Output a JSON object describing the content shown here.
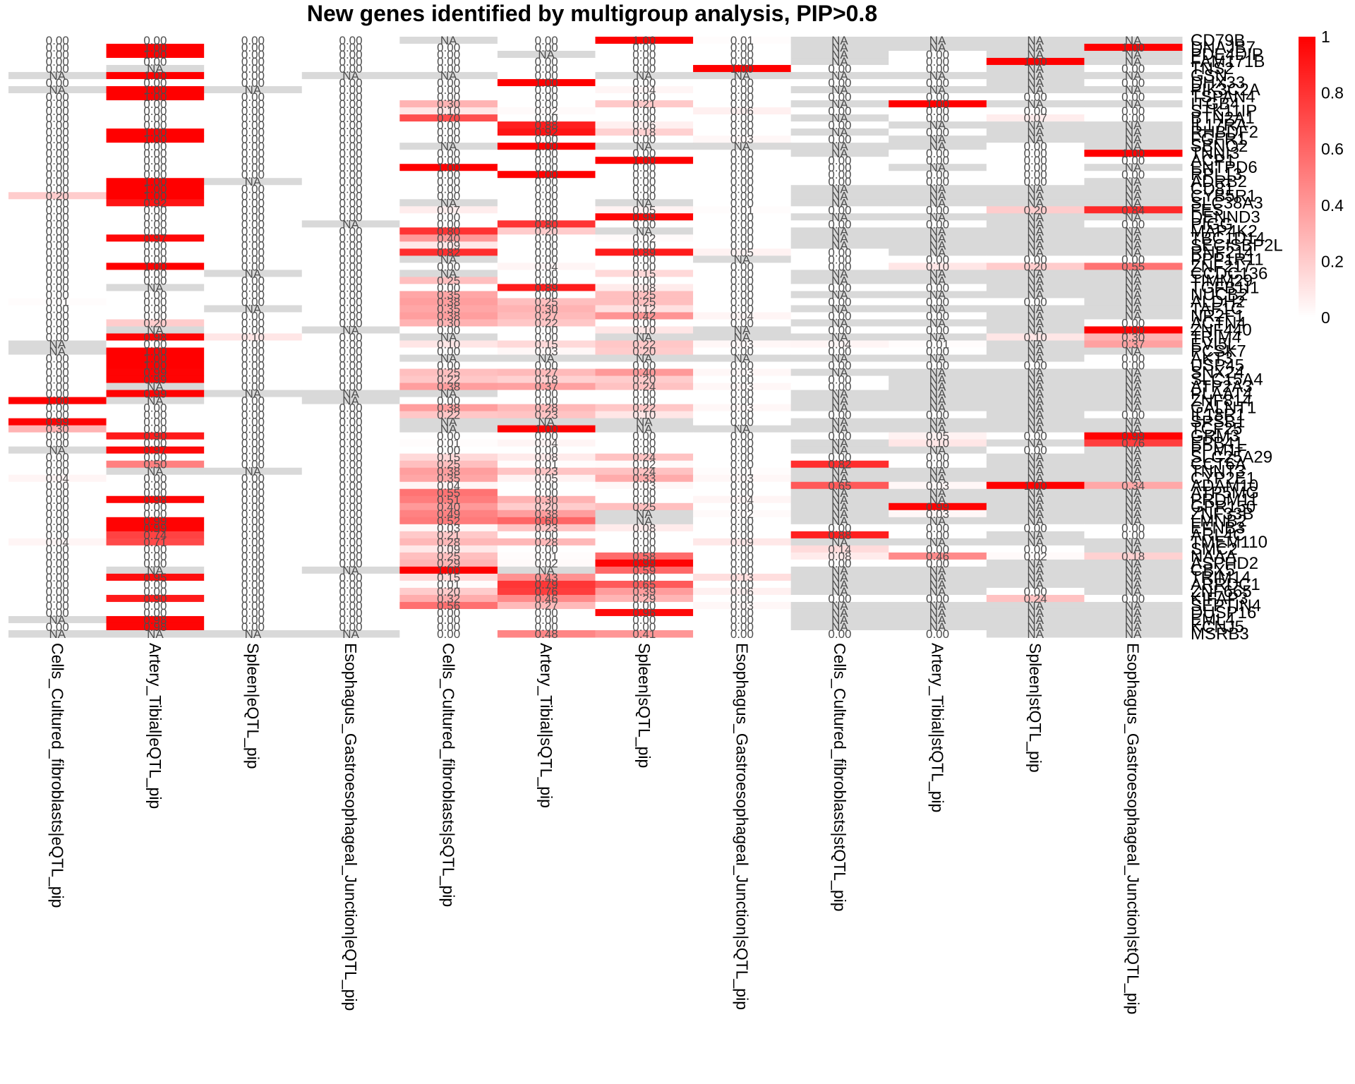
{
  "chart_data": {
    "type": "heatmap",
    "title": "New genes identified by multigroup analysis, PIP>0.8",
    "columns": [
      "Cells_Cultured_fibroblasts|eQTL_pip",
      "Artery_Tibial|eQTL_pip",
      "Spleen|eQTL_pip",
      "Esophagus_Gastroesophageal_Junction|eQTL_pip",
      "Cells_Cultured_fibroblasts|sQTL_pip",
      "Artery_Tibial|sQTL_pip",
      "Spleen|sQTL_pip",
      "Esophagus_Gastroesophageal_Junction|sQTL_pip",
      "Cells_Cultured_fibroblasts|stQTL_pip",
      "Artery_Tibial|stQTL_pip",
      "Spleen|stQTL_pip",
      "Esophagus_Gastroesophageal_Junction|stQTL_pip"
    ],
    "rows": [
      "CD79B",
      "DNAJB7",
      "PDE4DIP",
      "FAM171B",
      "TNS2",
      "GSN",
      "DHX33",
      "PIK3C2A",
      "TSPAN4",
      "ITGB4",
      "STK11IP",
      "BTN2A1",
      "IL17RA",
      "RHBDF2",
      "FGFR1",
      "SBNO2",
      "TNNI3",
      "ACP1",
      "ENTPD6",
      "RPL13",
      "ADRB2",
      "CD81",
      "CYB5R1",
      "SLC38A3",
      "FES",
      "DENND3",
      "PIGG",
      "MAP4K2",
      "TBC1D14",
      "SECISBP2L",
      "RNF214",
      "PPP1R11",
      "ZNF217",
      "CCDC136",
      "TIMM29",
      "TGFB1I1",
      "NUCB2",
      "ALDH2",
      "TAF1C",
      "NR2F1",
      "ACTN4",
      "ZNF440",
      "TRIM4",
      "EVI5L",
      "PCSK7",
      "AKT3",
      "USP45",
      "SNX24",
      "SLC15A4",
      "ATP2A3",
      "PLAAT4",
      "ZNF814",
      "GALNT1",
      "IL18R1",
      "SPSB1",
      "TCF25",
      "GRM3",
      "EPB41",
      "PPM1F",
      "SLC25A29",
      "CCT6A",
      "TNNT3",
      "CYP2E1",
      "ADAM10",
      "ATP5MG",
      "PRDM11",
      "GPR150",
      "ZNF33B",
      "LMNB2",
      "EFNB3",
      "ARL4C",
      "TMEM110",
      "SMC2",
      "NAAA",
      "ASPHD2",
      "CBX5",
      "TRIM14",
      "ARRDC1",
      "ZNF665",
      "KIFAP3",
      "SEPTIN4",
      "DUSP16",
      "EML4",
      "KCNJ5",
      "MSRB3"
    ],
    "values": [
      [
        0.0,
        0.0,
        0.0,
        0.0,
        null,
        0.0,
        1.0,
        0.01,
        null,
        null,
        null,
        null
      ],
      [
        0.0,
        1.0,
        0.0,
        0.0,
        0.0,
        0.0,
        0.0,
        0.0,
        null,
        null,
        null,
        1.0
      ],
      [
        0.0,
        1.0,
        0.0,
        0.0,
        0.0,
        null,
        0.0,
        0.0,
        null,
        0.0,
        null,
        null
      ],
      [
        0.0,
        0.0,
        0.0,
        0.0,
        0.0,
        0.0,
        0.0,
        0.0,
        null,
        0.0,
        1.0,
        null
      ],
      [
        0.0,
        null,
        0.0,
        0.0,
        0.0,
        0.0,
        0.0,
        1.0,
        0.0,
        0.0,
        null,
        0.0
      ],
      [
        null,
        1.0,
        0.0,
        null,
        null,
        0.0,
        null,
        null,
        null,
        null,
        null,
        null
      ],
      [
        0.0,
        0.0,
        0.0,
        0.0,
        0.0,
        1.0,
        0.0,
        0.0,
        0.0,
        0.0,
        null,
        0.0
      ],
      [
        null,
        1.0,
        null,
        0.0,
        0.0,
        0.0,
        0.04,
        0.0,
        null,
        null,
        null,
        null
      ],
      [
        0.0,
        1.0,
        0.0,
        0.0,
        0.0,
        0.0,
        0.0,
        0.0,
        0.0,
        0.0,
        0.0,
        0.0
      ],
      [
        0.0,
        0.0,
        0.0,
        0.0,
        0.3,
        0.0,
        0.21,
        0.0,
        null,
        1.0,
        null,
        null
      ],
      [
        0.0,
        0.0,
        0.0,
        0.0,
        0.1,
        0.02,
        0.0,
        0.06,
        0.0,
        0.0,
        0.0,
        0.0
      ],
      [
        0.0,
        0.0,
        0.0,
        0.0,
        0.7,
        0.0,
        0.0,
        0.0,
        null,
        0.0,
        0.07,
        0.0
      ],
      [
        0.0,
        0.0,
        0.0,
        0.0,
        0.0,
        0.88,
        0.06,
        0.0,
        0.0,
        null,
        null,
        null
      ],
      [
        0.0,
        1.0,
        0.0,
        0.0,
        0.0,
        0.92,
        0.18,
        0.0,
        null,
        0.0,
        null,
        null
      ],
      [
        0.0,
        1.0,
        0.0,
        0.0,
        0.0,
        0.0,
        0.0,
        0.03,
        0.0,
        null,
        null,
        null
      ],
      [
        0.0,
        0.0,
        0.0,
        0.0,
        null,
        1.0,
        null,
        null,
        null,
        null,
        0.0,
        null
      ],
      [
        0.0,
        0.0,
        0.0,
        0.0,
        0.0,
        0.0,
        0.0,
        0.0,
        null,
        0.0,
        0.0,
        1.0
      ],
      [
        0.0,
        0.0,
        0.0,
        0.0,
        0.0,
        0.0,
        1.0,
        0.0,
        0.0,
        0.0,
        0.0,
        0.0
      ],
      [
        0.0,
        0.0,
        0.0,
        0.0,
        1.0,
        0.0,
        0.0,
        0.0,
        0.0,
        null,
        0.0,
        null
      ],
      [
        0.0,
        0.0,
        0.0,
        0.0,
        0.0,
        1.0,
        0.0,
        0.0,
        0.0,
        0.0,
        0.0,
        0.0
      ],
      [
        0.0,
        1.0,
        null,
        0.0,
        0.0,
        0.0,
        0.0,
        0.0,
        0.0,
        0.0,
        0.0,
        null
      ],
      [
        0.0,
        1.0,
        0.0,
        0.0,
        0.0,
        0.0,
        0.0,
        0.0,
        null,
        null,
        null,
        null
      ],
      [
        0.2,
        1.0,
        0.0,
        0.0,
        0.0,
        0.0,
        0.0,
        0.0,
        null,
        null,
        null,
        null
      ],
      [
        0.0,
        0.92,
        0.0,
        0.0,
        null,
        0.0,
        null,
        0.0,
        null,
        null,
        null,
        null
      ],
      [
        0.0,
        0.0,
        0.0,
        0.0,
        0.07,
        0.0,
        0.05,
        0.01,
        0.0,
        0.0,
        0.2,
        0.84
      ],
      [
        0.0,
        0.0,
        0.0,
        0.0,
        0.0,
        0.0,
        0.99,
        0.0,
        null,
        null,
        null,
        null
      ],
      [
        0.0,
        0.0,
        0.0,
        null,
        0.0,
        0.8,
        0.0,
        0.0,
        0.0,
        0.0,
        null,
        0.0
      ],
      [
        0.0,
        0.0,
        0.0,
        0.0,
        0.8,
        0.2,
        null,
        0.0,
        null,
        null,
        null,
        null
      ],
      [
        0.0,
        0.97,
        0.0,
        0.0,
        0.4,
        0.0,
        0.02,
        0.0,
        null,
        null,
        null,
        null
      ],
      [
        0.0,
        0.0,
        0.0,
        0.0,
        0.09,
        0.0,
        0.0,
        0.0,
        null,
        null,
        null,
        null
      ],
      [
        0.0,
        0.0,
        0.0,
        0.0,
        0.82,
        0.0,
        0.89,
        0.05,
        0.0,
        null,
        null,
        null
      ],
      [
        0.0,
        0.0,
        0.0,
        0.0,
        null,
        0.0,
        0.0,
        null,
        0.0,
        0.0,
        0.0,
        0.0
      ],
      [
        0.0,
        1.0,
        0.0,
        0.0,
        0.0,
        0.04,
        0.0,
        0.0,
        0.0,
        0.1,
        0.2,
        0.55
      ],
      [
        0.0,
        0.0,
        null,
        0.0,
        null,
        0.0,
        0.15,
        0.0,
        null,
        null,
        null,
        null
      ],
      [
        0.0,
        0.0,
        0.0,
        0.0,
        0.25,
        0.0,
        0.0,
        0.0,
        null,
        null,
        null,
        null
      ],
      [
        0.0,
        null,
        0.0,
        0.0,
        0.0,
        0.89,
        0.08,
        0.0,
        0.0,
        0.0,
        null,
        null
      ],
      [
        0.0,
        0.0,
        0.0,
        0.0,
        0.35,
        0.0,
        0.25,
        0.0,
        null,
        null,
        null,
        null
      ],
      [
        0.01,
        0.0,
        0.0,
        0.0,
        0.38,
        0.25,
        0.25,
        0.0,
        0.0,
        0.0,
        0.0,
        null
      ],
      [
        0.0,
        0.0,
        null,
        0.0,
        0.35,
        0.3,
        0.12,
        0.0,
        null,
        null,
        null,
        null
      ],
      [
        0.0,
        0.0,
        0.0,
        0.0,
        0.38,
        0.27,
        0.42,
        0.04,
        0.0,
        0.0,
        null,
        null
      ],
      [
        0.0,
        0.2,
        0.0,
        0.0,
        0.3,
        0.22,
        0.0,
        0.0,
        null,
        null,
        null,
        0.0
      ],
      [
        0.0,
        null,
        0.0,
        null,
        0.0,
        0.0,
        0.1,
        null,
        0.0,
        0.0,
        null,
        1.0
      ],
      [
        0.0,
        0.98,
        0.1,
        0.0,
        null,
        0.0,
        null,
        null,
        null,
        null,
        0.1,
        0.3
      ],
      [
        null,
        0.0,
        0.0,
        0.0,
        0.1,
        0.15,
        0.22,
        0.03,
        0.04,
        0.01,
        null,
        0.37
      ],
      [
        null,
        1.0,
        0.0,
        0.0,
        0.0,
        0.03,
        0.2,
        0.0,
        0.0,
        0.0,
        null,
        null
      ],
      [
        0.0,
        1.0,
        0.0,
        0.0,
        null,
        null,
        null,
        null,
        null,
        null,
        null,
        0.0
      ],
      [
        0.0,
        1.0,
        0.0,
        0.0,
        0.0,
        0.0,
        0.0,
        0.0,
        0.0,
        0.0,
        0.0,
        0.0
      ],
      [
        0.0,
        0.99,
        0.0,
        0.0,
        0.25,
        0.27,
        0.4,
        0.03,
        null,
        null,
        null,
        null
      ],
      [
        0.0,
        0.99,
        0.0,
        0.0,
        0.22,
        0.18,
        0.2,
        0.0,
        0.0,
        null,
        null,
        null
      ],
      [
        0.0,
        null,
        0.0,
        0.0,
        0.38,
        0.37,
        0.24,
        0.03,
        0.0,
        null,
        null,
        null
      ],
      [
        0.0,
        0.99,
        null,
        null,
        null,
        0.0,
        0.0,
        0.0,
        null,
        null,
        null,
        null
      ],
      [
        1.0,
        null,
        0.0,
        null,
        0.0,
        0.0,
        0.0,
        0.0,
        null,
        null,
        null,
        null
      ],
      [
        0.0,
        0.0,
        0.0,
        0.0,
        0.38,
        0.28,
        0.22,
        0.03,
        null,
        null,
        null,
        null
      ],
      [
        0.0,
        0.0,
        0.0,
        0.0,
        0.22,
        0.23,
        0.1,
        0.0,
        0.0,
        0.0,
        null,
        0.0
      ],
      [
        0.99,
        0.0,
        0.0,
        0.0,
        null,
        null,
        null,
        0.0,
        null,
        null,
        null,
        null
      ],
      [
        0.3,
        0.0,
        0.0,
        0.0,
        null,
        1.0,
        null,
        null,
        null,
        null,
        null,
        null
      ],
      [
        0.0,
        0.9,
        0.0,
        0.0,
        0.0,
        0.0,
        0.0,
        0.0,
        0.0,
        0.05,
        0.0,
        0.99
      ],
      [
        0.0,
        0.0,
        0.0,
        0.0,
        0.01,
        0.04,
        0.0,
        0.0,
        null,
        0.1,
        null,
        0.76
      ],
      [
        null,
        0.97,
        0.0,
        0.0,
        0.0,
        0.0,
        0.0,
        0.0,
        null,
        null,
        0.0,
        null
      ],
      [
        0.0,
        0.0,
        0.0,
        0.0,
        0.15,
        0.08,
        0.24,
        0.0,
        0.0,
        0.0,
        null,
        null
      ],
      [
        0.0,
        0.5,
        0.0,
        0.0,
        0.25,
        0.01,
        0.02,
        0.0,
        0.82,
        0.0,
        null,
        null
      ],
      [
        0.0,
        null,
        null,
        0.0,
        0.38,
        0.23,
        0.24,
        0.01,
        null,
        null,
        null,
        null
      ],
      [
        0.04,
        0.0,
        0.0,
        0.0,
        0.35,
        0.05,
        0.33,
        0.03,
        null,
        null,
        null,
        null
      ],
      [
        0.0,
        0.0,
        0.0,
        0.0,
        0.04,
        0.0,
        0.03,
        0.0,
        0.65,
        0.03,
        1.0,
        0.34
      ],
      [
        0.0,
        0.0,
        0.0,
        0.0,
        0.55,
        0.0,
        0.0,
        0.0,
        null,
        null,
        null,
        null
      ],
      [
        0.0,
        0.98,
        0.0,
        0.0,
        0.51,
        0.3,
        0.0,
        0.04,
        null,
        null,
        null,
        null
      ],
      [
        0.0,
        0.0,
        0.0,
        0.0,
        0.4,
        0.2,
        0.25,
        0.0,
        null,
        0.99,
        null,
        null
      ],
      [
        0.0,
        0.0,
        0.0,
        0.0,
        0.49,
        0.38,
        null,
        0.02,
        null,
        0.03,
        null,
        null
      ],
      [
        0.0,
        0.99,
        0.0,
        0.0,
        0.52,
        0.6,
        null,
        0.0,
        null,
        null,
        null,
        null
      ],
      [
        0.0,
        0.99,
        0.0,
        0.0,
        0.03,
        0.23,
        0.08,
        0.0,
        0.0,
        0.0,
        0.0,
        0.0
      ],
      [
        0.0,
        0.74,
        0.0,
        0.0,
        0.21,
        0.0,
        0.0,
        0.0,
        0.88,
        0.0,
        null,
        0.0
      ],
      [
        0.04,
        0.71,
        0.0,
        0.0,
        0.28,
        0.28,
        0.0,
        0.09,
        null,
        null,
        null,
        null
      ],
      [
        0.0,
        0.0,
        0.0,
        0.0,
        0.09,
        0.0,
        0.0,
        0.0,
        0.14,
        0.0,
        0.0,
        null
      ],
      [
        0.0,
        0.0,
        0.0,
        0.0,
        0.25,
        0.01,
        0.58,
        0.0,
        0.08,
        0.46,
        0.02,
        0.18
      ],
      [
        0.0,
        0.0,
        0.0,
        0.0,
        0.29,
        0.02,
        0.99,
        0.0,
        0.0,
        0.0,
        null,
        null
      ],
      [
        0.0,
        null,
        0.0,
        null,
        1.0,
        null,
        0.59,
        0.0,
        null,
        null,
        null,
        null
      ],
      [
        0.0,
        0.95,
        0.0,
        0.0,
        0.15,
        0.43,
        0.0,
        0.13,
        null,
        null,
        null,
        null
      ],
      [
        0.0,
        0.0,
        0.0,
        0.0,
        0.01,
        0.79,
        0.65,
        0.0,
        null,
        null,
        null,
        null
      ],
      [
        0.0,
        0.0,
        0.0,
        0.0,
        0.2,
        0.76,
        0.39,
        0.06,
        null,
        null,
        0.0,
        null
      ],
      [
        0.0,
        0.9,
        0.0,
        0.0,
        0.32,
        0.46,
        0.29,
        0.0,
        0.0,
        0.0,
        0.24,
        0.0
      ],
      [
        0.0,
        0.0,
        0.0,
        0.0,
        0.56,
        0.27,
        0.0,
        0.03,
        null,
        null,
        null,
        null
      ],
      [
        0.0,
        0.0,
        0.0,
        0.0,
        0.0,
        0.0,
        0.96,
        0.0,
        null,
        null,
        null,
        null
      ],
      [
        null,
        0.98,
        0.0,
        0.0,
        0.0,
        0.0,
        0.0,
        0.0,
        null,
        null,
        null,
        null
      ],
      [
        0.0,
        0.98,
        0.0,
        0.0,
        0.0,
        0.0,
        0.0,
        0.0,
        null,
        null,
        null,
        null
      ],
      [
        null,
        null,
        null,
        null,
        0.0,
        0.48,
        0.41,
        0.0,
        0.0,
        0.0,
        null,
        null
      ]
    ],
    "na_label": "NA",
    "color_scale": {
      "low": "#ffffff",
      "high": "#ff0000",
      "na": "#d9d9d9"
    },
    "legend": {
      "ticks": [
        "0",
        "0.2",
        "0.4",
        "0.6",
        "0.8",
        "1"
      ],
      "range": [
        0,
        1
      ],
      "position": "top-right"
    }
  }
}
